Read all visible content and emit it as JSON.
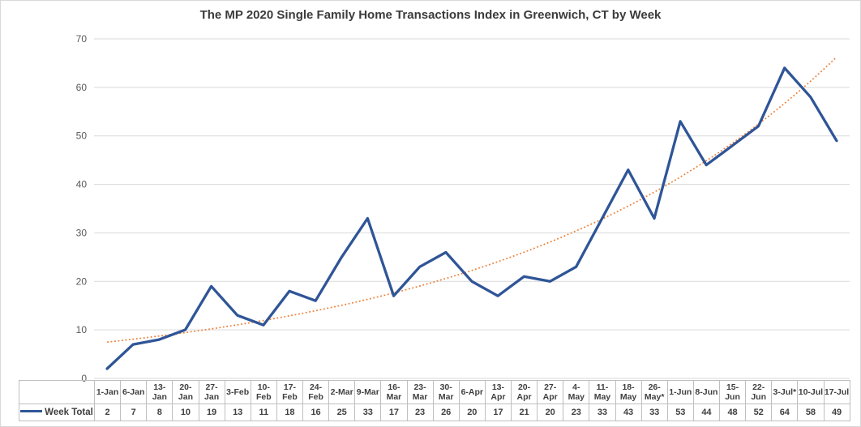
{
  "chart_data": {
    "type": "line",
    "title": "The MP 2020 Single Family Home Transactions Index in Greenwich, CT by Week",
    "categories": [
      "1-Jan",
      "6-Jan",
      "13-Jan",
      "20-Jan",
      "27-Jan",
      "3-Feb",
      "10-Feb",
      "17-Feb",
      "24-Feb",
      "2-Mar",
      "9-Mar",
      "16-Mar",
      "23-Mar",
      "30-Mar",
      "6-Apr",
      "13-Apr",
      "20-Apr",
      "27-Apr",
      "4-May",
      "11-May",
      "18-May",
      "26-May*",
      "1-Jun",
      "8-Jun",
      "15-Jun",
      "22-Jun",
      "3-Jul*",
      "10-Jul",
      "17-Jul"
    ],
    "category_display": [
      "1-Jan",
      "6-Jan",
      "13-\nJan",
      "20-\nJan",
      "27-\nJan",
      "3-Feb",
      "10-\nFeb",
      "17-\nFeb",
      "24-\nFeb",
      "2-Mar",
      "9-Mar",
      "16-\nMar",
      "23-\nMar",
      "30-\nMar",
      "6-Apr",
      "13-\nApr",
      "20-\nApr",
      "27-\nApr",
      "4-\nMay",
      "11-\nMay",
      "18-\nMay",
      "26-\nMay*",
      "1-Jun",
      "8-Jun",
      "15-\nJun",
      "22-\nJun",
      "3-Jul*",
      "10-Jul",
      "17-Jul"
    ],
    "series": [
      {
        "name": "Week Total",
        "values": [
          2,
          7,
          8,
          10,
          19,
          13,
          11,
          18,
          16,
          25,
          33,
          17,
          23,
          26,
          20,
          17,
          21,
          20,
          23,
          33,
          43,
          33,
          53,
          44,
          48,
          52,
          64,
          58,
          49
        ],
        "color": "#2F5597"
      }
    ],
    "trendline": {
      "type": "exponential",
      "of_series": "Week Total",
      "color": "#ED7D31",
      "style": "dotted"
    },
    "xlabel": "",
    "ylabel": "",
    "ylim": [
      0,
      70
    ],
    "ytick_step": 10,
    "yticks": [
      "0",
      "10",
      "20",
      "30",
      "40",
      "50",
      "60",
      "70"
    ],
    "grid": true,
    "legend_position": "bottom-left-of-data-table"
  },
  "colors": {
    "line": "#2F5597",
    "trendline": "#ED7D31",
    "gridline": "#D9D9D9",
    "table_border": "#BFBFBF",
    "axis_text": "#595959",
    "table_text": "#404040",
    "title_text": "#3B3B3B"
  },
  "legend": {
    "label": "Week Total"
  }
}
